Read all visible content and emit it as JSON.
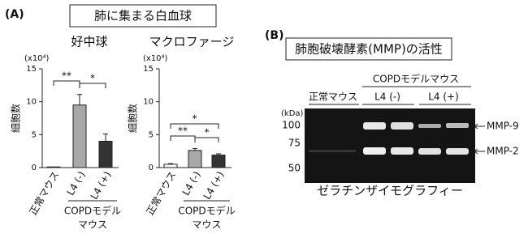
{
  "panel_a": {
    "label": "(A)",
    "title": "肺に集まる白血球"
  },
  "chart_data": [
    {
      "type": "bar",
      "title": "好中球",
      "y_unit": "(x10⁴)",
      "ylabel": "細胞数",
      "categories": [
        "正常マウス",
        "L4 (-)",
        "L4 (+)"
      ],
      "values": [
        0.1,
        9.5,
        4.0
      ],
      "errors": [
        0,
        1.6,
        1.1
      ],
      "colors": [
        "#ffffff",
        "#a8a8a8",
        "#333333"
      ],
      "ylim": [
        0,
        15
      ],
      "yticks": [
        0,
        5,
        10,
        15
      ],
      "annotations": [
        "**",
        "*"
      ],
      "group_label": [
        "COPDモデル",
        "マウス"
      ]
    },
    {
      "type": "bar",
      "title": "マクロファージ",
      "y_unit": "(x10⁴)",
      "ylabel": "細胞数",
      "categories": [
        "正常マウス",
        "L4 (-)",
        "L4 (+)"
      ],
      "values": [
        0.5,
        2.6,
        1.9
      ],
      "errors": [
        0.1,
        0.3,
        0.2
      ],
      "colors": [
        "#ffffff",
        "#a8a8a8",
        "#333333"
      ],
      "ylim": [
        0,
        15
      ],
      "yticks": [
        0,
        5,
        10,
        15
      ],
      "annotations": [
        "**",
        "*",
        "*"
      ],
      "group_label": [
        "COPDモデル",
        "マウス"
      ]
    }
  ],
  "panel_b": {
    "label": "(B)",
    "title": "肺胞破壊酵素(MMP)の活性",
    "control": "正常マウス",
    "model": "COPDモデルマウス",
    "lanes": [
      "L4 (-)",
      "L4 (+)"
    ],
    "unit": "(kDa)",
    "markers": [
      100,
      75,
      50
    ],
    "bands": [
      "MMP-9",
      "MMP-2"
    ],
    "method": "ゼラチンザイモグラフィー"
  }
}
